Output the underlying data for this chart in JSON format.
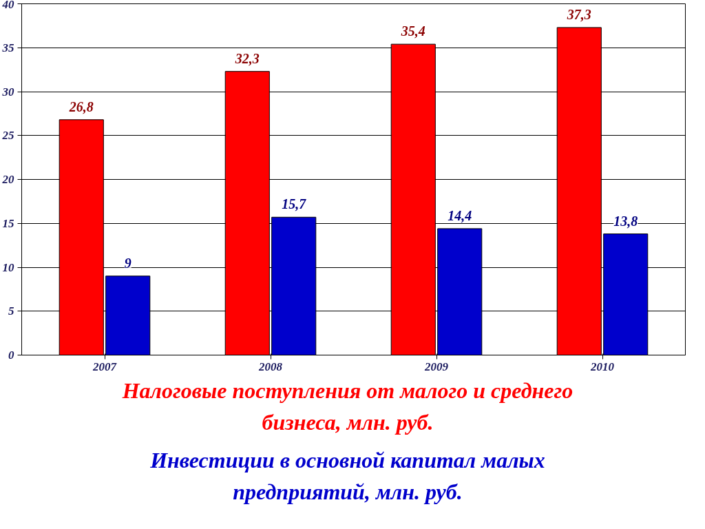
{
  "chart_data": {
    "type": "bar",
    "categories": [
      "2007",
      "2008",
      "2009",
      "2010"
    ],
    "series": [
      {
        "name": "Налоговые поступления от малого и среднего бизнеса, млн. руб.",
        "color": "#ff0000",
        "values": [
          26.8,
          32.3,
          35.4,
          37.3
        ],
        "value_labels": [
          "26,8",
          "32,3",
          "35,4",
          "37,3"
        ]
      },
      {
        "name": "Инвестиции в основной капитал малых предприятий, млн. руб.",
        "color": "#0000cc",
        "values": [
          9,
          15.7,
          14.4,
          13.8
        ],
        "value_labels": [
          "9",
          "15,7",
          "14,4",
          "13,8"
        ]
      }
    ],
    "ylim": [
      0,
      40
    ],
    "yticks": [
      0,
      5,
      10,
      15,
      20,
      25,
      30,
      35,
      40
    ],
    "grid": "y",
    "legend": "bottom"
  }
}
